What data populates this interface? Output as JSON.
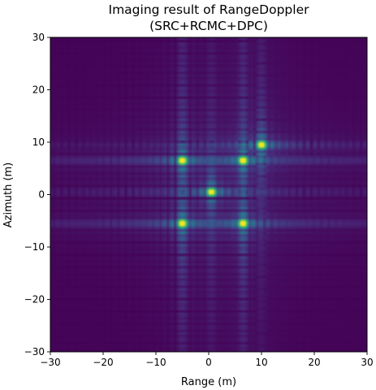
{
  "chart_data": {
    "type": "heatmap",
    "title": "Imaging result of RangeDoppler\n(SRC+RCMC+DPC)",
    "title_lines": [
      "Imaging result of RangeDoppler",
      "(SRC+RCMC+DPC)"
    ],
    "xlabel": "Range (m)",
    "ylabel": "Azimuth (m)",
    "xlim": [
      -30,
      30
    ],
    "ylim": [
      -30,
      30
    ],
    "x_ticks": [
      -30,
      -20,
      -10,
      0,
      10,
      20,
      30
    ],
    "y_ticks": [
      -30,
      -20,
      -10,
      0,
      10,
      20,
      30
    ],
    "x_tick_labels": [
      "−30",
      "−20",
      "−10",
      "0",
      "10",
      "20",
      "30"
    ],
    "y_tick_labels": [
      "−30",
      "−20",
      "−10",
      "0",
      "10",
      "20",
      "30"
    ],
    "colormap": "viridis",
    "grid": false,
    "point_targets": [
      {
        "range": -5,
        "azimuth": 6.5,
        "intensity": 1.0
      },
      {
        "range": 6.5,
        "azimuth": 6.5,
        "intensity": 1.0
      },
      {
        "range": 10,
        "azimuth": 9.5,
        "intensity": 1.0
      },
      {
        "range": 0.5,
        "azimuth": 0.5,
        "intensity": 1.0
      },
      {
        "range": -5,
        "azimuth": -5.5,
        "intensity": 1.0
      },
      {
        "range": 6.5,
        "azimuth": -5.5,
        "intensity": 1.0
      }
    ]
  }
}
